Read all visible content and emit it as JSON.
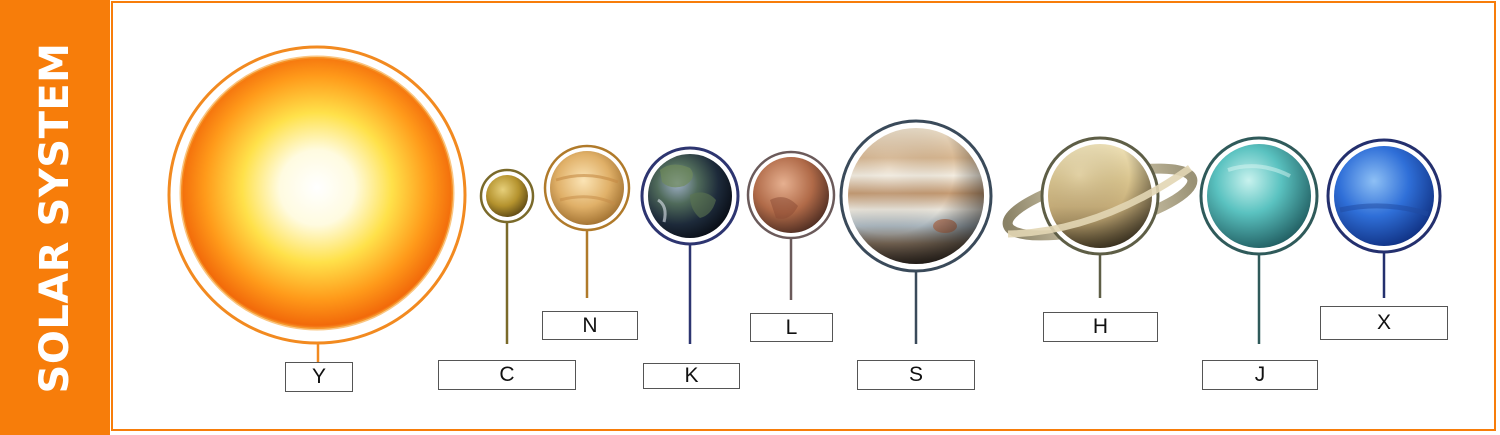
{
  "sidebar": {
    "title": "SOLAR SYSTEM"
  },
  "colors": {
    "accent": "#f77d0a",
    "background": "#ffffff"
  },
  "bodies": [
    {
      "id": "sun",
      "label": "Y",
      "ring_color": "#f28a20"
    },
    {
      "id": "mercury",
      "label": "C",
      "ring_color": "#7a6a2a"
    },
    {
      "id": "venus",
      "label": "N",
      "ring_color": "#b07a2a"
    },
    {
      "id": "earth",
      "label": "K",
      "ring_color": "#2d3570"
    },
    {
      "id": "mars",
      "label": "L",
      "ring_color": "#6b5a5a"
    },
    {
      "id": "jupiter",
      "label": "S",
      "ring_color": "#3a4a5a"
    },
    {
      "id": "saturn",
      "label": "H",
      "ring_color": "#5e5e46"
    },
    {
      "id": "uranus",
      "label": "J",
      "ring_color": "#2f5a5a"
    },
    {
      "id": "neptune",
      "label": "X",
      "ring_color": "#24306e"
    }
  ]
}
